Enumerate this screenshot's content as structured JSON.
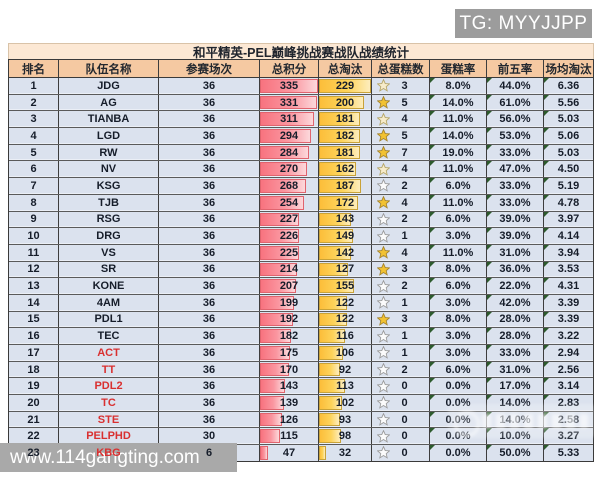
{
  "overlays": {
    "tg_badge": "TG: MYYJJPP",
    "site_badge": "www.114gangting.com"
  },
  "colors": {
    "title_bg": "#fce8d4",
    "header_bg": "#f5c9a2",
    "row_bg": "#dbe2ee",
    "points_bar": "#f8737f",
    "elims_bar": "#fcbe3a",
    "team_red": "#d93030",
    "corner_flag_green": "#2d5b2d",
    "star_gold": "#f2c232",
    "star_tint": "#f7ecca",
    "star_white": "#fbfbfb",
    "badge_gray": "#9c9c9c"
  },
  "table": {
    "title": "和平精英-PEL巅峰挑战赛战队战绩统计",
    "columns": [
      "排名",
      "队伍名称",
      "参赛场次",
      "总积分",
      "总淘汰",
      "总蛋糕数",
      "蛋糕率",
      "前五率",
      "场均淘汰"
    ],
    "max_points": 335,
    "max_elims": 229,
    "rows": [
      {
        "rank": "1",
        "team": "JDG",
        "team_color": "dark",
        "matches": "36",
        "points": 335,
        "elims": 229,
        "cakes": "3",
        "star": "tint",
        "cake_rate": "8.0%",
        "top5_rate": "44.0%",
        "avg_elims": "6.36"
      },
      {
        "rank": "2",
        "team": "AG",
        "team_color": "dark",
        "matches": "36",
        "points": 331,
        "elims": 200,
        "cakes": "5",
        "star": "gold",
        "cake_rate": "14.0%",
        "top5_rate": "61.0%",
        "avg_elims": "5.56"
      },
      {
        "rank": "3",
        "team": "TIANBA",
        "team_color": "dark",
        "matches": "36",
        "points": 311,
        "elims": 181,
        "cakes": "4",
        "star": "tint",
        "cake_rate": "11.0%",
        "top5_rate": "56.0%",
        "avg_elims": "5.03"
      },
      {
        "rank": "4",
        "team": "LGD",
        "team_color": "dark",
        "matches": "36",
        "points": 294,
        "elims": 182,
        "cakes": "5",
        "star": "gold",
        "cake_rate": "14.0%",
        "top5_rate": "53.0%",
        "avg_elims": "5.06"
      },
      {
        "rank": "5",
        "team": "RW",
        "team_color": "dark",
        "matches": "36",
        "points": 284,
        "elims": 181,
        "cakes": "7",
        "star": "gold",
        "cake_rate": "19.0%",
        "top5_rate": "33.0%",
        "avg_elims": "5.03"
      },
      {
        "rank": "6",
        "team": "NV",
        "team_color": "dark",
        "matches": "36",
        "points": 270,
        "elims": 162,
        "cakes": "4",
        "star": "tint",
        "cake_rate": "11.0%",
        "top5_rate": "47.0%",
        "avg_elims": "4.50"
      },
      {
        "rank": "7",
        "team": "KSG",
        "team_color": "dark",
        "matches": "36",
        "points": 268,
        "elims": 187,
        "cakes": "2",
        "star": "white",
        "cake_rate": "6.0%",
        "top5_rate": "33.0%",
        "avg_elims": "5.19"
      },
      {
        "rank": "8",
        "team": "TJB",
        "team_color": "dark",
        "matches": "36",
        "points": 254,
        "elims": 172,
        "cakes": "4",
        "star": "gold",
        "cake_rate": "11.0%",
        "top5_rate": "33.0%",
        "avg_elims": "4.78"
      },
      {
        "rank": "9",
        "team": "RSG",
        "team_color": "dark",
        "matches": "36",
        "points": 227,
        "elims": 143,
        "cakes": "2",
        "star": "white",
        "cake_rate": "6.0%",
        "top5_rate": "39.0%",
        "avg_elims": "3.97"
      },
      {
        "rank": "10",
        "team": "DRG",
        "team_color": "dark",
        "matches": "36",
        "points": 226,
        "elims": 149,
        "cakes": "1",
        "star": "white",
        "cake_rate": "3.0%",
        "top5_rate": "39.0%",
        "avg_elims": "4.14"
      },
      {
        "rank": "11",
        "team": "VS",
        "team_color": "dark",
        "matches": "36",
        "points": 225,
        "elims": 142,
        "cakes": "4",
        "star": "gold",
        "cake_rate": "11.0%",
        "top5_rate": "31.0%",
        "avg_elims": "3.94"
      },
      {
        "rank": "12",
        "team": "SR",
        "team_color": "dark",
        "matches": "36",
        "points": 214,
        "elims": 127,
        "cakes": "3",
        "star": "gold",
        "cake_rate": "8.0%",
        "top5_rate": "36.0%",
        "avg_elims": "3.53"
      },
      {
        "rank": "13",
        "team": "KONE",
        "team_color": "dark",
        "matches": "36",
        "points": 207,
        "elims": 155,
        "cakes": "2",
        "star": "white",
        "cake_rate": "6.0%",
        "top5_rate": "22.0%",
        "avg_elims": "4.31"
      },
      {
        "rank": "14",
        "team": "4AM",
        "team_color": "dark",
        "matches": "36",
        "points": 199,
        "elims": 122,
        "cakes": "1",
        "star": "white",
        "cake_rate": "3.0%",
        "top5_rate": "42.0%",
        "avg_elims": "3.39"
      },
      {
        "rank": "15",
        "team": "PDL1",
        "team_color": "dark",
        "matches": "36",
        "points": 192,
        "elims": 122,
        "cakes": "3",
        "star": "gold",
        "cake_rate": "8.0%",
        "top5_rate": "28.0%",
        "avg_elims": "3.39"
      },
      {
        "rank": "16",
        "team": "TEC",
        "team_color": "dark",
        "matches": "36",
        "points": 182,
        "elims": 116,
        "cakes": "1",
        "star": "white",
        "cake_rate": "3.0%",
        "top5_rate": "28.0%",
        "avg_elims": "3.22"
      },
      {
        "rank": "17",
        "team": "ACT",
        "team_color": "red",
        "matches": "36",
        "points": 175,
        "elims": 106,
        "cakes": "1",
        "star": "white",
        "cake_rate": "3.0%",
        "top5_rate": "33.0%",
        "avg_elims": "2.94"
      },
      {
        "rank": "18",
        "team": "TT",
        "team_color": "red",
        "matches": "36",
        "points": 170,
        "elims": 92,
        "cakes": "2",
        "star": "white",
        "cake_rate": "6.0%",
        "top5_rate": "31.0%",
        "avg_elims": "2.56"
      },
      {
        "rank": "19",
        "team": "PDL2",
        "team_color": "red",
        "matches": "36",
        "points": 143,
        "elims": 113,
        "cakes": "0",
        "star": "white",
        "cake_rate": "0.0%",
        "top5_rate": "17.0%",
        "avg_elims": "3.14"
      },
      {
        "rank": "20",
        "team": "TC",
        "team_color": "red",
        "matches": "36",
        "points": 139,
        "elims": 102,
        "cakes": "0",
        "star": "white",
        "cake_rate": "0.0%",
        "top5_rate": "14.0%",
        "avg_elims": "2.83"
      },
      {
        "rank": "21",
        "team": "STE",
        "team_color": "red",
        "matches": "36",
        "points": 126,
        "elims": 93,
        "cakes": "0",
        "star": "white",
        "cake_rate": "0.0%",
        "top5_rate": "14.0%",
        "avg_elims": "2.58"
      },
      {
        "rank": "22",
        "team": "PELPHD",
        "team_color": "red",
        "matches": "30",
        "points": 115,
        "elims": 98,
        "cakes": "0",
        "star": "white",
        "cake_rate": "0.0%",
        "top5_rate": "10.0%",
        "avg_elims": "3.27"
      },
      {
        "rank": "23",
        "team": "KBG",
        "team_color": "red",
        "matches": "6",
        "points": 47,
        "elims": 32,
        "cakes": "0",
        "star": "white",
        "cake_rate": "0.0%",
        "top5_rate": "50.0%",
        "avg_elims": "5.33"
      }
    ]
  }
}
